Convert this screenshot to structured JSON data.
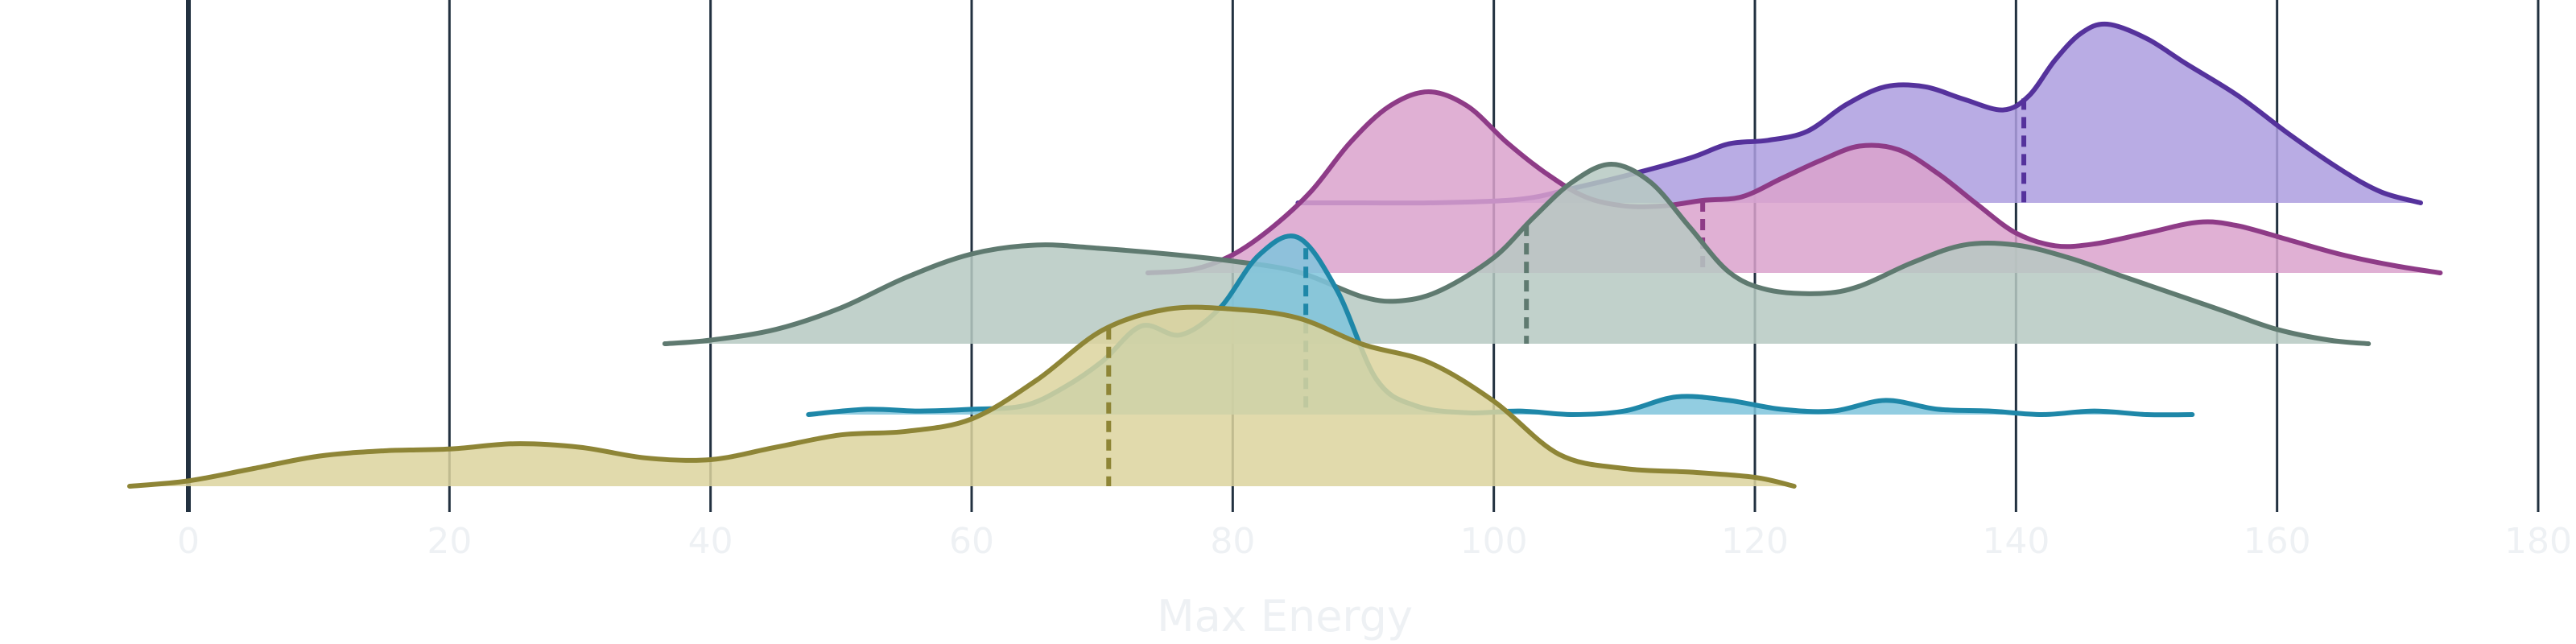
{
  "chart_data": {
    "type": "ridgeline",
    "xlabel": "Max Energy",
    "xlim": [
      0,
      180
    ],
    "ticks": [
      {
        "value": 0,
        "label": "0"
      },
      {
        "value": 20,
        "label": "20"
      },
      {
        "value": 40,
        "label": "40"
      },
      {
        "value": 60,
        "label": "60"
      },
      {
        "value": 80,
        "label": "80"
      },
      {
        "value": 100,
        "label": "100"
      },
      {
        "value": 120,
        "label": "120"
      },
      {
        "value": 140,
        "label": "140"
      },
      {
        "value": 160,
        "label": "160"
      },
      {
        "value": 180,
        "label": "180"
      }
    ],
    "grid": "vertical",
    "series": [
      {
        "line_color": "#55329c",
        "fill_color": "#ad9edf",
        "median": 140.6,
        "points": [
          [
            85.0,
            0.0
          ],
          [
            90.0,
            0.0
          ],
          [
            95.0,
            0.0
          ],
          [
            100.0,
            0.01
          ],
          [
            103.0,
            0.03
          ],
          [
            106.0,
            0.08
          ],
          [
            110.0,
            0.15
          ],
          [
            115.0,
            0.25
          ],
          [
            118.0,
            0.33
          ],
          [
            121.0,
            0.35
          ],
          [
            124.0,
            0.4
          ],
          [
            127.0,
            0.55
          ],
          [
            130.0,
            0.65
          ],
          [
            133.0,
            0.65
          ],
          [
            136.0,
            0.58
          ],
          [
            139.0,
            0.52
          ],
          [
            141.0,
            0.6
          ],
          [
            143.0,
            0.8
          ],
          [
            145.0,
            0.95
          ],
          [
            147.0,
            1.0
          ],
          [
            150.0,
            0.92
          ],
          [
            153.0,
            0.78
          ],
          [
            157.0,
            0.6
          ],
          [
            161.0,
            0.38
          ],
          [
            165.0,
            0.18
          ],
          [
            168.0,
            0.06
          ],
          [
            171.0,
            0.0
          ]
        ]
      },
      {
        "line_color": "#8e3b87",
        "fill_color": "#dba2cd",
        "median": 116.0,
        "points": [
          [
            73.5,
            0.0
          ],
          [
            77.0,
            0.02
          ],
          [
            80.0,
            0.1
          ],
          [
            83.0,
            0.25
          ],
          [
            86.0,
            0.45
          ],
          [
            89.0,
            0.72
          ],
          [
            92.0,
            0.92
          ],
          [
            95.0,
            1.0
          ],
          [
            98.0,
            0.92
          ],
          [
            101.0,
            0.72
          ],
          [
            104.0,
            0.55
          ],
          [
            107.0,
            0.42
          ],
          [
            110.0,
            0.37
          ],
          [
            113.0,
            0.37
          ],
          [
            116.0,
            0.4
          ],
          [
            119.0,
            0.42
          ],
          [
            122.0,
            0.52
          ],
          [
            125.0,
            0.62
          ],
          [
            128.0,
            0.7
          ],
          [
            131.0,
            0.68
          ],
          [
            134.0,
            0.55
          ],
          [
            137.0,
            0.38
          ],
          [
            140.0,
            0.22
          ],
          [
            143.0,
            0.15
          ],
          [
            146.0,
            0.16
          ],
          [
            150.0,
            0.22
          ],
          [
            154.0,
            0.28
          ],
          [
            157.0,
            0.26
          ],
          [
            161.0,
            0.18
          ],
          [
            165.0,
            0.1
          ],
          [
            169.0,
            0.04
          ],
          [
            172.5,
            0.0
          ]
        ]
      },
      {
        "line_color": "#5f7a70",
        "fill_color": "#b6c9c2",
        "median": 102.5,
        "points": [
          [
            36.5,
            0.0
          ],
          [
            40.0,
            0.02
          ],
          [
            45.0,
            0.08
          ],
          [
            50.0,
            0.2
          ],
          [
            55.0,
            0.37
          ],
          [
            60.0,
            0.5
          ],
          [
            65.0,
            0.55
          ],
          [
            70.0,
            0.53
          ],
          [
            75.0,
            0.5
          ],
          [
            80.0,
            0.46
          ],
          [
            85.0,
            0.4
          ],
          [
            90.0,
            0.26
          ],
          [
            93.0,
            0.24
          ],
          [
            96.0,
            0.3
          ],
          [
            100.0,
            0.48
          ],
          [
            103.0,
            0.7
          ],
          [
            106.0,
            0.9
          ],
          [
            109.0,
            1.0
          ],
          [
            112.0,
            0.9
          ],
          [
            115.0,
            0.65
          ],
          [
            118.0,
            0.4
          ],
          [
            121.0,
            0.3
          ],
          [
            125.0,
            0.28
          ],
          [
            128.0,
            0.32
          ],
          [
            132.0,
            0.45
          ],
          [
            136.0,
            0.55
          ],
          [
            140.0,
            0.55
          ],
          [
            144.0,
            0.48
          ],
          [
            148.0,
            0.38
          ],
          [
            152.0,
            0.28
          ],
          [
            156.0,
            0.18
          ],
          [
            160.0,
            0.08
          ],
          [
            164.0,
            0.02
          ],
          [
            167.0,
            0.0
          ]
        ]
      },
      {
        "line_color": "#1e87a8",
        "fill_color": "#7fc4dc",
        "median": 85.6,
        "points": [
          [
            47.5,
            0.0
          ],
          [
            52.0,
            0.03
          ],
          [
            56.0,
            0.02
          ],
          [
            60.0,
            0.03
          ],
          [
            64.0,
            0.05
          ],
          [
            67.0,
            0.15
          ],
          [
            70.0,
            0.3
          ],
          [
            73.0,
            0.5
          ],
          [
            76.0,
            0.45
          ],
          [
            79.0,
            0.6
          ],
          [
            82.0,
            0.9
          ],
          [
            85.0,
            1.0
          ],
          [
            88.0,
            0.7
          ],
          [
            91.0,
            0.2
          ],
          [
            94.0,
            0.05
          ],
          [
            98.0,
            0.01
          ],
          [
            102.0,
            0.02
          ],
          [
            106.0,
            0.0
          ],
          [
            110.0,
            0.02
          ],
          [
            114.0,
            0.1
          ],
          [
            118.0,
            0.08
          ],
          [
            122.0,
            0.03
          ],
          [
            126.0,
            0.02
          ],
          [
            130.0,
            0.08
          ],
          [
            134.0,
            0.03
          ],
          [
            138.0,
            0.02
          ],
          [
            142.0,
            0.0
          ],
          [
            146.0,
            0.02
          ],
          [
            150.0,
            0.0
          ],
          [
            153.5,
            0.0
          ]
        ]
      },
      {
        "line_color": "#8e8536",
        "fill_color": "#dcd39e",
        "median": 70.5,
        "points": [
          [
            -4.5,
            0.0
          ],
          [
            0.0,
            0.03
          ],
          [
            5.0,
            0.1
          ],
          [
            10.0,
            0.17
          ],
          [
            15.0,
            0.2
          ],
          [
            20.0,
            0.21
          ],
          [
            25.0,
            0.24
          ],
          [
            30.0,
            0.22
          ],
          [
            35.0,
            0.16
          ],
          [
            40.0,
            0.15
          ],
          [
            45.0,
            0.22
          ],
          [
            50.0,
            0.29
          ],
          [
            55.0,
            0.31
          ],
          [
            60.0,
            0.38
          ],
          [
            65.0,
            0.6
          ],
          [
            70.0,
            0.88
          ],
          [
            75.0,
            1.0
          ],
          [
            80.0,
            1.0
          ],
          [
            85.0,
            0.95
          ],
          [
            90.0,
            0.8
          ],
          [
            95.0,
            0.7
          ],
          [
            100.0,
            0.48
          ],
          [
            105.0,
            0.18
          ],
          [
            110.0,
            0.1
          ],
          [
            115.0,
            0.08
          ],
          [
            120.0,
            0.05
          ],
          [
            123.0,
            0.0
          ]
        ]
      }
    ]
  }
}
